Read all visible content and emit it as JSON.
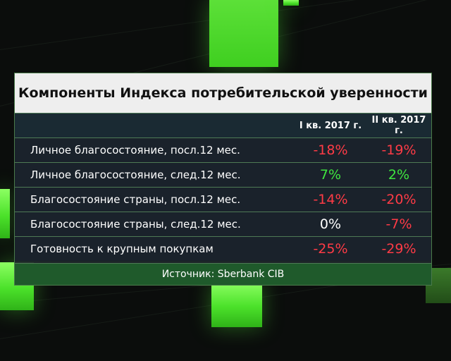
{
  "table": {
    "title": "Компоненты Индекса потребительской уверенности",
    "columns": [
      "I кв. 2017 г.",
      "II кв. 2017 г."
    ],
    "rows": [
      {
        "label": "Личное благосостояние, посл.12 мес.",
        "q1": "-18%",
        "q2": "-19%"
      },
      {
        "label": "Личное благосостояние, след.12 мес.",
        "q1": "7%",
        "q2": "2%"
      },
      {
        "label": "Благосостояние страны, посл.12 мес.",
        "q1": "-14%",
        "q2": "-20%"
      },
      {
        "label": "Благосостояние страны, след.12 мес.",
        "q1": "0%",
        "q2": "-7%"
      },
      {
        "label": "Готовность к крупным покупкам",
        "q1": "-25%",
        "q2": "-29%"
      }
    ],
    "source": "Источник: Sberbank CIB"
  },
  "colors": {
    "negative": "#ff3b46",
    "positive": "#3fe63f",
    "neutral": "#ffffff",
    "accent_green": "#4be12a"
  }
}
